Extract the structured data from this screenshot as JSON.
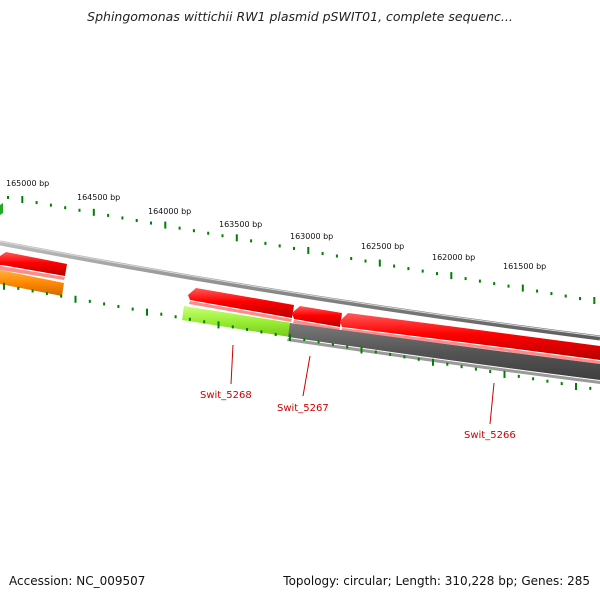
{
  "title": "Sphingomonas wittichii RW1 plasmid pSWIT01, complete sequenc...",
  "footer": {
    "accession": "Accession: NC_009507",
    "summary": "Topology: circular; Length: 310,228 bp; Genes: 285"
  },
  "scale_labels": [
    "165000 bp",
    "164500 bp",
    "164000 bp",
    "163500 bp",
    "163000 bp",
    "162500 bp",
    "162000 bp",
    "161500 bp"
  ],
  "gene_labels": [
    "Swit_5268",
    "Swit_5267",
    "Swit_5266"
  ],
  "colors": {
    "forward_red": "#ff0000",
    "tick_green": "#008000",
    "backbone_gray": "#808080",
    "label_red": "#cc0000",
    "orange": "#ff8800",
    "lime": "#99ee33",
    "dark_gray": "#555555"
  }
}
